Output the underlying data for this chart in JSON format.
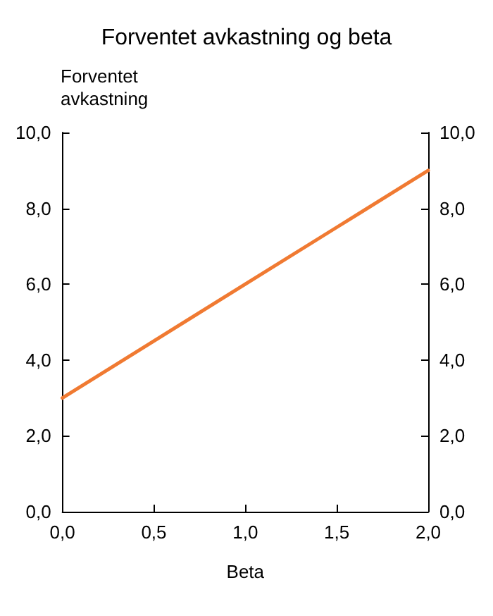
{
  "chart_data": {
    "type": "line",
    "title": "Forventet avkastning og beta",
    "xlabel": "Beta",
    "ylabel": "Forventet\navkastning",
    "x": [
      0,
      0.5,
      1,
      1.5,
      2
    ],
    "series": [
      {
        "color": "#f07a32",
        "values": [
          3,
          4.5,
          6,
          7.5,
          9
        ]
      }
    ],
    "xlim": [
      0,
      2
    ],
    "xticks": [
      {
        "value": 0,
        "label": "0,0"
      },
      {
        "value": 0.5,
        "label": "0,5"
      },
      {
        "value": 1,
        "label": "1,0"
      },
      {
        "value": 1.5,
        "label": "1,5"
      },
      {
        "value": 2,
        "label": "2,0"
      }
    ],
    "ylim": [
      0,
      10
    ],
    "yticks": [
      {
        "value": 0,
        "label": "0,0"
      },
      {
        "value": 2,
        "label": "2,0"
      },
      {
        "value": 4,
        "label": "4,0"
      },
      {
        "value": 6,
        "label": "6,0"
      },
      {
        "value": 8,
        "label": "8,0"
      },
      {
        "value": 10,
        "label": "10,0"
      }
    ],
    "y2lim": [
      0,
      10
    ],
    "y2ticks": [
      {
        "value": 0,
        "label": "0,0"
      },
      {
        "value": 2,
        "label": "2,0"
      },
      {
        "value": 4,
        "label": "4,0"
      },
      {
        "value": 6,
        "label": "6,0"
      },
      {
        "value": 8,
        "label": "8,0"
      },
      {
        "value": 10,
        "label": "10,0"
      }
    ],
    "grid": false,
    "marker": "none",
    "line_style": "solid"
  }
}
